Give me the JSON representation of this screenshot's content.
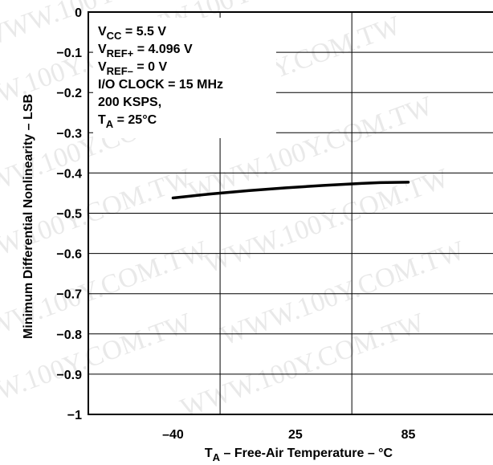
{
  "chart_data": {
    "type": "line",
    "xlabel": {
      "main": "T",
      "sub": "A",
      "rest": " – Free-Air Temperature – °C"
    },
    "ylabel": "Minimum Differential Nonlinearity – LSB",
    "xlim": [
      -85,
      130
    ],
    "ylim": [
      -1,
      0
    ],
    "x_ticks": [
      "–40",
      "25",
      "85"
    ],
    "x_tick_values": [
      -40,
      25,
      85
    ],
    "y_ticks": [
      "0",
      "−0.1",
      "−0.2",
      "−0.3",
      "−0.4",
      "−0.5",
      "−0.6",
      "−0.7",
      "−0.8",
      "−0.9",
      "−1"
    ],
    "y_tick_values": [
      0,
      -0.1,
      -0.2,
      -0.3,
      -0.4,
      -0.5,
      -0.6,
      -0.7,
      -0.8,
      -0.9,
      -1
    ],
    "grid": true,
    "series": [
      {
        "x": [
          -40,
          -20,
          0,
          20,
          40,
          60,
          70,
          85
        ],
        "y": [
          -0.462,
          -0.452,
          -0.444,
          -0.437,
          -0.431,
          -0.426,
          -0.424,
          -0.423
        ]
      }
    ],
    "annotations": [
      {
        "main": "V",
        "sub": "CC",
        "rest": " = 5.5 V"
      },
      {
        "main": "V",
        "sub": "REF+",
        "rest": " = 4.096 V"
      },
      {
        "main": "V",
        "sub": "REF–",
        "rest": " = 0 V"
      },
      {
        "main": "I/O CLOCK = 15 MHz",
        "sub": "",
        "rest": ""
      },
      {
        "main": "200 KSPS,",
        "sub": "",
        "rest": ""
      },
      {
        "main": "T",
        "sub": "A",
        "rest": " = 25°C"
      }
    ],
    "watermark": "WWW.100Y.COM.TW"
  }
}
